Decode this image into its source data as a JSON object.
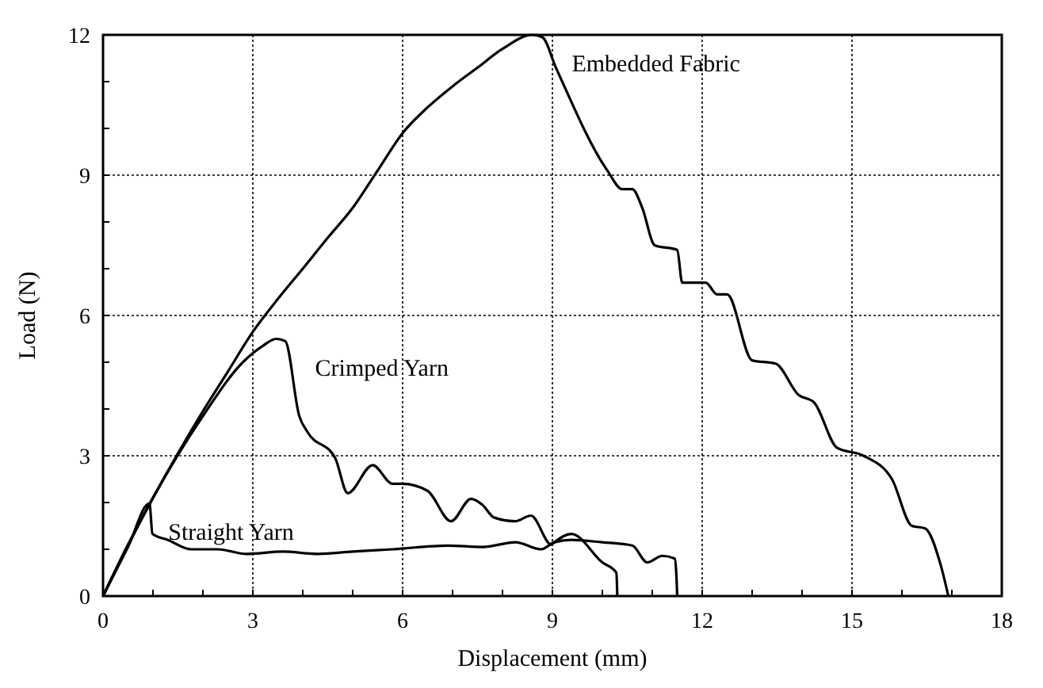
{
  "chart_data": {
    "type": "line",
    "xlabel": "Displacement  (mm)",
    "ylabel": "Load  (N)",
    "xlim": [
      0,
      18
    ],
    "ylim": [
      0,
      12
    ],
    "xticks": [
      0,
      3,
      6,
      9,
      12,
      15,
      18
    ],
    "yticks": [
      0,
      3,
      6,
      9,
      12
    ],
    "grid": true,
    "line_style": "solid",
    "marker": "none",
    "series": [
      {
        "name": "Embedded Fabric",
        "color": "#000000",
        "x": [
          0,
          0.5,
          1,
          1.5,
          2,
          2.5,
          3,
          3.5,
          4,
          4.5,
          5,
          5.5,
          6,
          6.5,
          7,
          7.5,
          8,
          8.6,
          8.8,
          9.07,
          10.1,
          10.4,
          10.6,
          10.8,
          11.05,
          11.5,
          11.6,
          12.07,
          12.3,
          12.5,
          13.0,
          13.47,
          13.93,
          14.24,
          14.7,
          15.23,
          15.8,
          16.2,
          16.46,
          16.78,
          16.93
        ],
        "values": [
          0,
          1.1,
          2.1,
          3.05,
          3.95,
          4.8,
          5.65,
          6.35,
          7.0,
          7.66,
          8.3,
          9.1,
          9.9,
          10.45,
          10.9,
          11.3,
          11.7,
          12.0,
          11.95,
          11.3,
          9.1,
          8.7,
          8.7,
          8.3,
          7.5,
          7.4,
          6.7,
          6.7,
          6.45,
          6.45,
          5.04,
          4.97,
          4.3,
          4.14,
          3.17,
          3.0,
          2.5,
          1.5,
          1.45,
          0.65,
          0
        ]
      },
      {
        "name": "Crimped Yarn",
        "color": "#000000",
        "x": [
          0,
          1,
          2,
          2.8,
          3.2,
          3.47,
          3.65,
          3.93,
          4.1,
          4.65,
          4.9,
          5.4,
          5.8,
          6.0,
          6.5,
          6.97,
          7.37,
          7.6,
          7.83,
          8.25,
          8.57,
          8.98,
          9.04,
          9.38,
          10.0,
          10.28,
          10.3
        ],
        "values": [
          0,
          2.1,
          3.85,
          5.0,
          5.35,
          5.5,
          5.45,
          3.85,
          3.5,
          2.95,
          2.2,
          2.8,
          2.4,
          2.4,
          2.25,
          1.6,
          2.08,
          1.95,
          1.68,
          1.6,
          1.72,
          1.1,
          1.15,
          1.33,
          0.72,
          0.5,
          0
        ]
      },
      {
        "name": "Straight Yarn",
        "color": "#000000",
        "x": [
          0,
          0.5,
          0.93,
          0.99,
          1.3,
          1.77,
          2.3,
          2.88,
          3.6,
          4.3,
          5.0,
          5.8,
          6.9,
          7.6,
          8.26,
          8.77,
          9.04,
          9.38,
          10.0,
          10.6,
          10.9,
          11.2,
          11.45,
          11.48,
          11.5
        ],
        "values": [
          0,
          1.05,
          1.98,
          1.33,
          1.2,
          1.0,
          1.0,
          0.9,
          0.95,
          0.9,
          0.95,
          1.0,
          1.08,
          1.05,
          1.15,
          1.0,
          1.15,
          1.2,
          1.15,
          1.08,
          0.72,
          0.86,
          0.8,
          0.5,
          0
        ]
      }
    ]
  }
}
